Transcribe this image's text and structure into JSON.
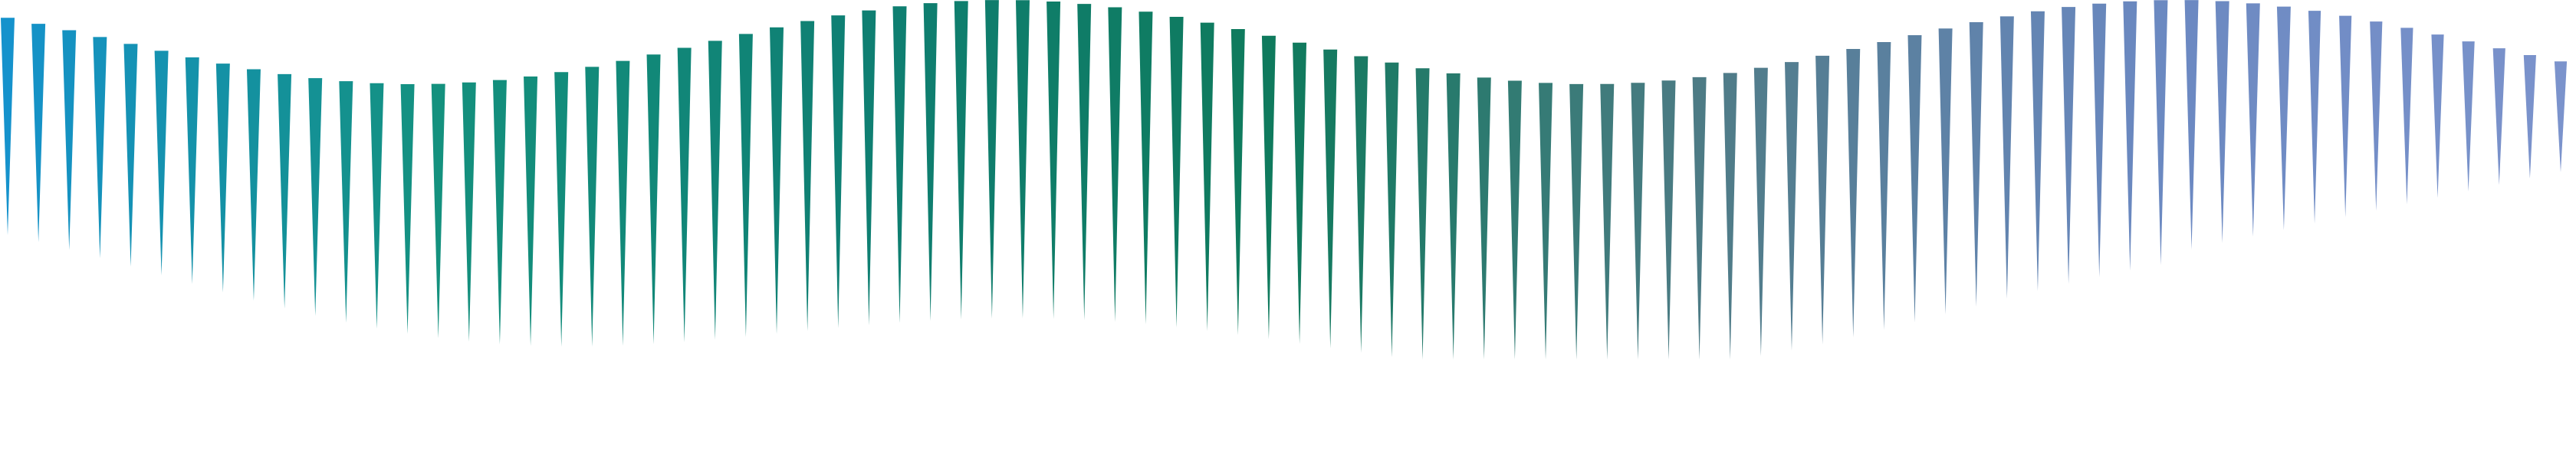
{
  "graphic": {
    "mark_shape": "downward-pointing triangle spike",
    "mark_count": 84,
    "background": "#ffffff",
    "gradient_stops": [
      "#1592cc",
      "#14917e",
      "#0f7f73",
      "#0f7a5c",
      "#4f7b86",
      "#6a88c0",
      "#7b93cc"
    ]
  }
}
